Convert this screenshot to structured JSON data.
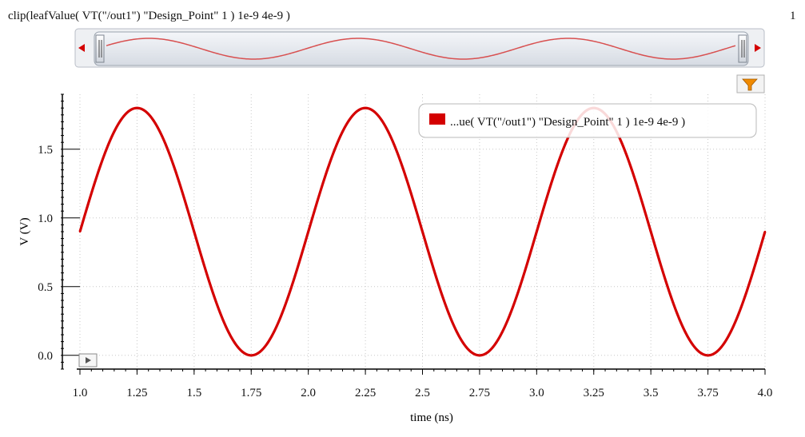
{
  "header": {
    "expression": "clip(leafValue( VT(\"/out1\") \"Design_Point\" 1 ) 1e-9 4e-9 )",
    "page_number": "1"
  },
  "overview": {
    "scroll_left_icon": "arrow-left-icon",
    "scroll_right_icon": "arrow-right-icon"
  },
  "toolbar": {
    "filter_icon": "filter-icon"
  },
  "play_icon": "play-icon",
  "colors": {
    "trace": "#d40000",
    "grid": "#c8c8c8",
    "axis": "#000000",
    "overview_bg": "#e6eaf0"
  },
  "chart_data": {
    "type": "line",
    "xlabel": "time (ns)",
    "ylabel": "V (V)",
    "xlim": [
      1.0,
      4.0
    ],
    "ylim": [
      -0.1,
      1.9
    ],
    "xticks": [
      "1.0",
      "1.25",
      "1.5",
      "1.75",
      "2.0",
      "2.25",
      "2.5",
      "2.75",
      "3.0",
      "3.25",
      "3.5",
      "3.75",
      "4.0"
    ],
    "yticks": [
      "0.0",
      "0.5",
      "1.0",
      "1.5"
    ],
    "grid": true,
    "legend": {
      "position": "top-right",
      "label": "...ue( VT(\"/out1\") \"Design_Point\" 1 ) 1e-9 4e-9 )"
    },
    "series": [
      {
        "name": "...ue( VT(\"/out1\") \"Design_Point\" 1 ) 1e-9 4e-9 )",
        "x": [
          1.0,
          1.125,
          1.25,
          1.375,
          1.5,
          1.625,
          1.75,
          1.875,
          2.0,
          2.125,
          2.25,
          2.375,
          2.5,
          2.625,
          2.75,
          2.875,
          3.0,
          3.125,
          3.25,
          3.375,
          3.5,
          3.625,
          3.75,
          3.875,
          4.0
        ],
        "y": [
          0.9,
          1.54,
          1.8,
          1.54,
          0.9,
          0.26,
          0.0,
          0.26,
          0.9,
          1.54,
          1.8,
          1.54,
          0.9,
          0.26,
          0.0,
          0.26,
          0.9,
          1.54,
          1.8,
          1.54,
          0.9,
          0.26,
          0.0,
          0.26,
          0.9
        ]
      }
    ]
  }
}
